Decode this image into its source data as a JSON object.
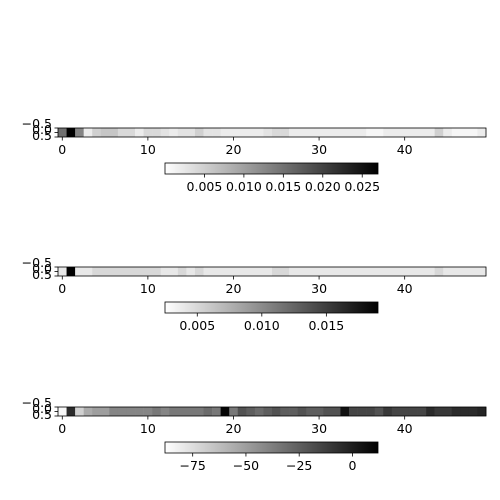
{
  "chart_data": [
    {
      "type": "heatmap",
      "colormap": "gray_r",
      "x_ticks": [
        0,
        10,
        20,
        30,
        40
      ],
      "y_ticks": [
        "−0.5",
        "0.0",
        "0.5"
      ],
      "colorbar": {
        "min": 0.0,
        "max": 0.027,
        "ticks": [
          0.005,
          0.01,
          0.015,
          0.02,
          0.025
        ],
        "tick_labels": [
          "0.005",
          "0.010",
          "0.015",
          "0.020",
          "0.025"
        ]
      },
      "values": [
        0.015,
        0.027,
        0.013,
        0.002,
        0.005,
        0.006,
        0.006,
        0.004,
        0.004,
        0.002,
        0.004,
        0.004,
        0.003,
        0.002,
        0.003,
        0.003,
        0.005,
        0.003,
        0.003,
        0.002,
        0.002,
        0.002,
        0.002,
        0.002,
        0.003,
        0.004,
        0.004,
        0.002,
        0.002,
        0.002,
        0.002,
        0.002,
        0.002,
        0.002,
        0.002,
        0.002,
        0.001,
        0.001,
        0.002,
        0.002,
        0.002,
        0.002,
        0.002,
        0.002,
        0.005,
        0.002,
        0.001,
        0.001,
        0.001,
        0.002
      ]
    },
    {
      "type": "heatmap",
      "colormap": "gray_r",
      "x_ticks": [
        0,
        10,
        20,
        30,
        40
      ],
      "y_ticks": [
        "−0.5",
        "0.0",
        "0.5"
      ],
      "colorbar": {
        "min": 0.0025,
        "max": 0.019,
        "ticks": [
          0.005,
          0.01,
          0.015
        ],
        "tick_labels": [
          "0.005",
          "0.010",
          "0.015"
        ]
      },
      "values": [
        0.004,
        0.019,
        0.004,
        0.004,
        0.005,
        0.005,
        0.005,
        0.005,
        0.005,
        0.005,
        0.005,
        0.005,
        0.004,
        0.004,
        0.005,
        0.004,
        0.005,
        0.004,
        0.004,
        0.004,
        0.004,
        0.004,
        0.004,
        0.004,
        0.004,
        0.005,
        0.005,
        0.004,
        0.004,
        0.004,
        0.004,
        0.004,
        0.004,
        0.004,
        0.004,
        0.004,
        0.004,
        0.004,
        0.004,
        0.004,
        0.004,
        0.004,
        0.004,
        0.004,
        0.005,
        0.004,
        0.004,
        0.004,
        0.004,
        0.004
      ]
    },
    {
      "type": "heatmap",
      "colormap": "gray_r",
      "x_ticks": [
        0,
        10,
        20,
        30,
        40
      ],
      "y_ticks": [
        "−0.5",
        "0.0",
        "0.5"
      ],
      "colorbar": {
        "min": -88,
        "max": 12,
        "ticks": [
          -75,
          -50,
          -25,
          0
        ],
        "tick_labels": [
          "−75",
          "−50",
          "−25",
          "0"
        ]
      },
      "values": [
        -85,
        -5,
        -70,
        -55,
        -50,
        -50,
        -40,
        -40,
        -40,
        -40,
        -40,
        -35,
        -40,
        -35,
        -35,
        -35,
        -35,
        -30,
        -35,
        10,
        -35,
        -20,
        -25,
        -30,
        -25,
        -20,
        -25,
        -25,
        -20,
        -25,
        -25,
        -20,
        -20,
        5,
        -15,
        -15,
        -15,
        -20,
        -10,
        -15,
        -15,
        -15,
        -15,
        -5,
        -10,
        -10,
        -5,
        -5,
        -5,
        -2
      ]
    }
  ]
}
